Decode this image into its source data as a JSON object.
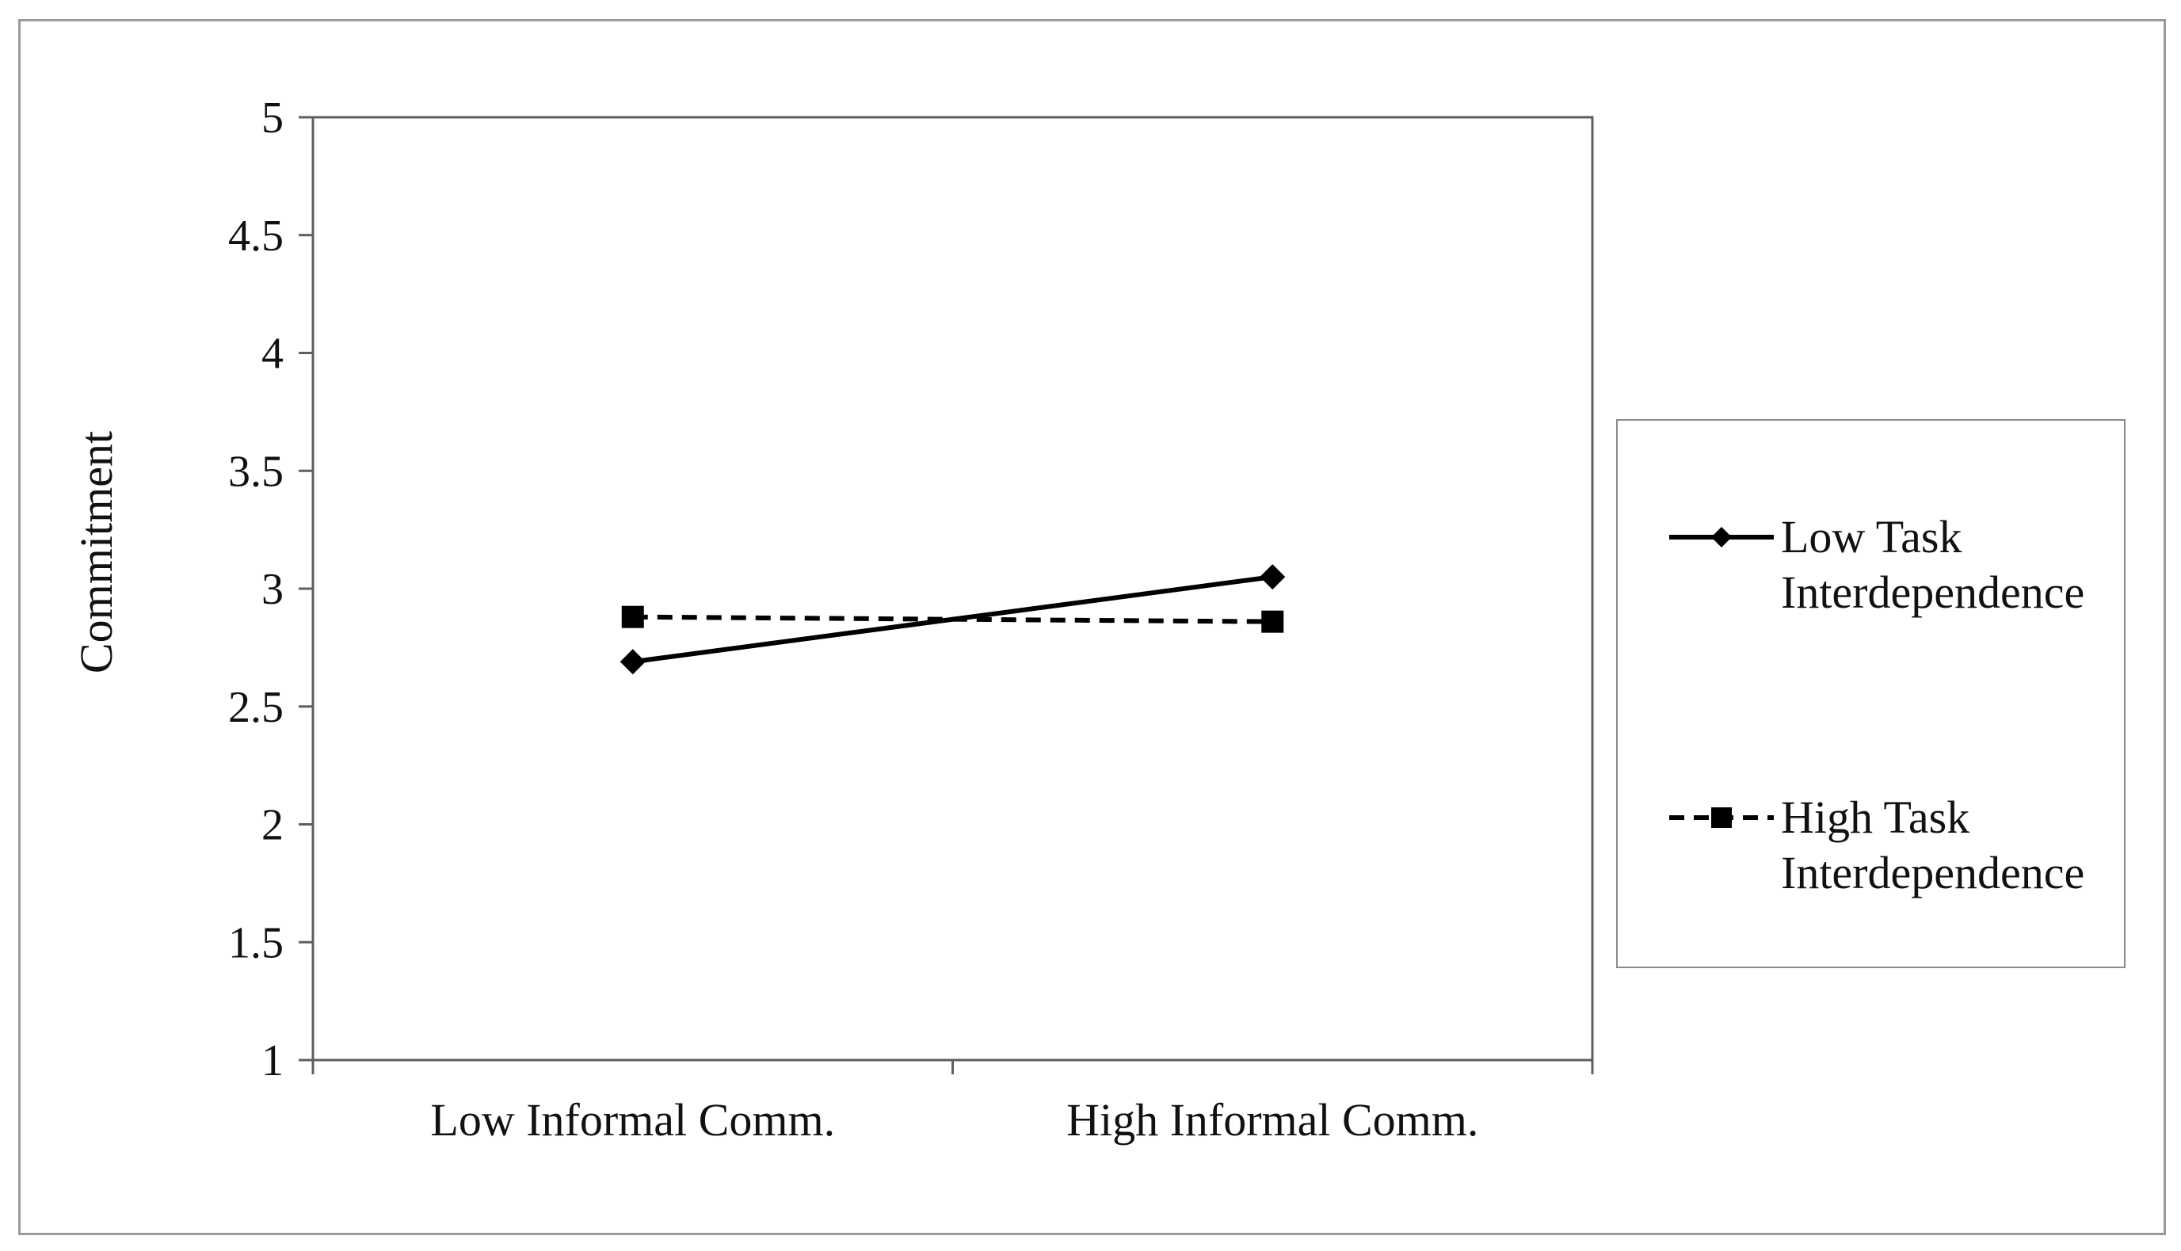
{
  "figure": {
    "background": "#ffffff",
    "border_color": "#9a9a9a"
  },
  "chart_data": {
    "type": "line",
    "title": "",
    "xlabel": "",
    "ylabel": "Commitment",
    "categories": [
      "Low Informal Comm.",
      "High Informal Comm."
    ],
    "series": [
      {
        "name": "Low Task Interdependence",
        "values": [
          2.69,
          3.05
        ],
        "line_style": "solid",
        "marker": "diamond",
        "color": "#000000"
      },
      {
        "name": "High Task Interdependence",
        "values": [
          2.88,
          2.86
        ],
        "line_style": "dashed",
        "marker": "square",
        "color": "#000000"
      }
    ],
    "ylim": [
      1,
      5
    ],
    "ytick_step": 0.5,
    "ytick_labels": [
      "5",
      "4.5",
      "4",
      "3.5",
      "3",
      "2.5",
      "2",
      "1.5",
      "1"
    ],
    "grid": false,
    "legend_position": "right"
  },
  "legend": {
    "items": [
      {
        "line1": "Low Task",
        "line2": "Interdependence"
      },
      {
        "line1": "High Task",
        "line2": "Interdependence"
      }
    ]
  }
}
